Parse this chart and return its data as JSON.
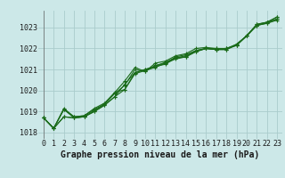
{
  "xlabel": "Graphe pression niveau de la mer (hPa)",
  "bg_color": "#cce8e8",
  "grid_color": "#aacccc",
  "line_color": "#1a6b1a",
  "x_ticks": [
    0,
    1,
    2,
    3,
    4,
    5,
    6,
    7,
    8,
    9,
    10,
    11,
    12,
    13,
    14,
    15,
    16,
    17,
    18,
    19,
    20,
    21,
    22,
    23
  ],
  "y_ticks": [
    1018,
    1019,
    1020,
    1021,
    1022,
    1023
  ],
  "ylim": [
    1017.7,
    1023.8
  ],
  "xlim": [
    -0.5,
    23.5
  ],
  "lines": [
    [
      1018.7,
      1018.2,
      1018.75,
      1018.7,
      1018.75,
      1019.0,
      1019.3,
      1019.7,
      1020.05,
      1020.8,
      1020.95,
      1021.1,
      1021.3,
      1021.5,
      1021.6,
      1021.85,
      1022.0,
      1022.0,
      1022.0,
      1022.15,
      1022.6,
      1023.1,
      1023.2,
      1023.35
    ],
    [
      1018.7,
      1018.2,
      1018.75,
      1018.7,
      1018.75,
      1019.0,
      1019.3,
      1019.7,
      1020.3,
      1020.85,
      1021.0,
      1021.15,
      1021.35,
      1021.55,
      1021.65,
      1021.9,
      1022.0,
      1021.95,
      1022.0,
      1022.15,
      1022.6,
      1023.1,
      1023.25,
      1023.4
    ],
    [
      1018.7,
      1018.2,
      1019.1,
      1018.75,
      1018.8,
      1019.1,
      1019.35,
      1019.85,
      1020.25,
      1021.0,
      1020.9,
      1021.2,
      1021.3,
      1021.6,
      1021.7,
      1021.9,
      1022.0,
      1021.95,
      1021.95,
      1022.2,
      1022.6,
      1023.15,
      1023.25,
      1023.5
    ],
    [
      1018.7,
      1018.2,
      1019.15,
      1018.75,
      1018.8,
      1019.15,
      1019.4,
      1019.9,
      1020.45,
      1021.1,
      1020.9,
      1021.3,
      1021.4,
      1021.65,
      1021.75,
      1022.0,
      1022.05,
      1022.0,
      1022.0,
      1022.2,
      1022.6,
      1023.15,
      1023.25,
      1023.5
    ],
    [
      1018.7,
      1018.2,
      1019.1,
      1018.7,
      1018.75,
      1019.05,
      1019.35,
      1019.9,
      1020.05,
      1020.85,
      1021.0,
      1021.15,
      1021.25,
      1021.55,
      1021.6,
      1021.85,
      1022.0,
      1021.95,
      1021.95,
      1022.15,
      1022.6,
      1023.1,
      1023.2,
      1023.4
    ]
  ],
  "marker": "+",
  "markersize": 3.5,
  "linewidth": 0.8,
  "tick_fontsize": 6,
  "xlabel_fontsize": 7
}
